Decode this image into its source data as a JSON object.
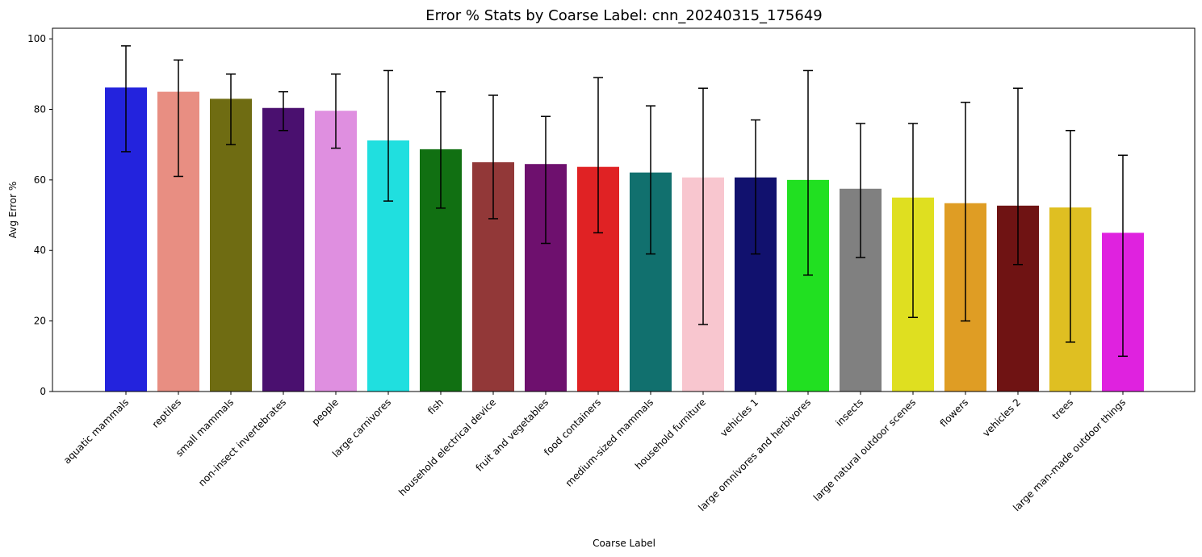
{
  "chart_data": {
    "type": "bar",
    "title": "Error % Stats by Coarse Label: cnn_20240315_175649",
    "xlabel": "Coarse Label",
    "ylabel": "Avg Error %",
    "ylim": [
      0,
      103
    ],
    "yticks": [
      0,
      20,
      40,
      60,
      80,
      100
    ],
    "grid": false,
    "legend": "none",
    "error_bars": true,
    "categories": [
      "aquatic mammals",
      "reptiles",
      "small mammals",
      "non-insect invertebrates",
      "people",
      "large carnivores",
      "fish",
      "household electrical device",
      "fruit and vegetables",
      "food containers",
      "medium-sized mammals",
      "household furniture",
      "vehicles 1",
      "large omnivores and herbivores",
      "insects",
      "large natural outdoor scenes",
      "flowers",
      "vehicles 2",
      "trees",
      "large man-made outdoor things"
    ],
    "values": [
      86.2,
      85.0,
      83.0,
      80.4,
      79.6,
      71.2,
      68.7,
      65.0,
      64.5,
      63.7,
      62.1,
      60.7,
      60.7,
      60.0,
      57.5,
      55.0,
      53.4,
      52.7,
      52.2,
      45.0
    ],
    "err_low": [
      68,
      61,
      70,
      74,
      69,
      54,
      52,
      49,
      42,
      45,
      39,
      19,
      39,
      33,
      38,
      21,
      20,
      36,
      14,
      10
    ],
    "err_high": [
      98,
      94,
      90,
      85,
      90,
      91,
      85,
      84,
      78,
      89,
      81,
      86,
      77,
      91,
      76,
      76,
      82,
      86,
      74,
      67
    ],
    "colors": [
      "#2323dd",
      "#e88e82",
      "#6f6c12",
      "#4a106f",
      "#df8fe0",
      "#20dfdf",
      "#117012",
      "#923838",
      "#6e106e",
      "#e02224",
      "#11706e",
      "#f8c6cf",
      "#11116e",
      "#21e021",
      "#808080",
      "#dfdf20",
      "#df9d24",
      "#6f1313",
      "#dfbf22",
      "#df22df"
    ]
  }
}
